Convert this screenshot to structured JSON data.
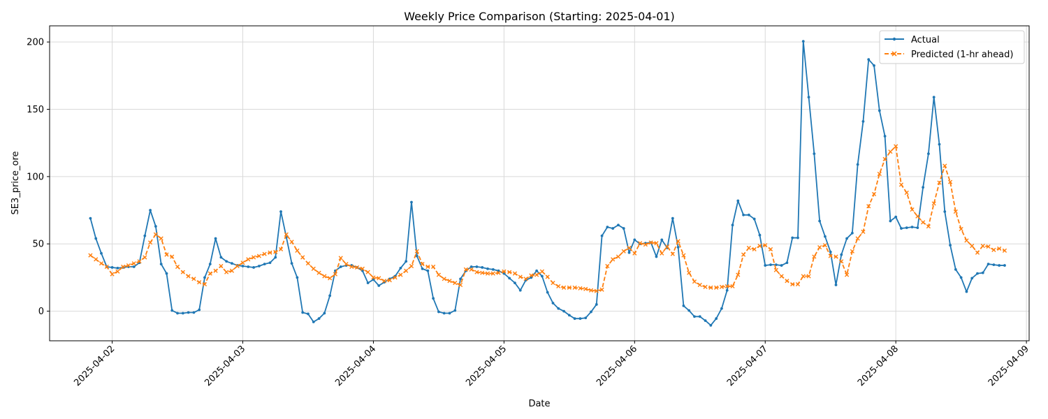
{
  "chart_data": {
    "type": "line",
    "title": "Weekly Price Comparison (Starting: 2025-04-01)",
    "xlabel": "Date",
    "ylabel": "SE3_price_ore",
    "xlim": [
      "2025-04-01T12:30",
      "2025-04-09T00:30"
    ],
    "ylim": [
      -22,
      212
    ],
    "x_ticks": [
      "2025-04-02",
      "2025-04-03",
      "2025-04-04",
      "2025-04-05",
      "2025-04-06",
      "2025-04-07",
      "2025-04-08",
      "2025-04-09"
    ],
    "y_ticks": [
      0,
      50,
      100,
      150,
      200
    ],
    "grid": true,
    "legend_position": "top-right",
    "x_start": "2025-04-01T20:00",
    "x_step_hours": 1,
    "series": [
      {
        "name": "Actual",
        "color": "#1f77b4",
        "marker": "dot",
        "line_style": "solid",
        "values": [
          69,
          54,
          43,
          33,
          32.5,
          32,
          32.5,
          33,
          33,
          36,
          56,
          75,
          63,
          35,
          28,
          0.5,
          -1.5,
          -1.5,
          -1,
          -1,
          1,
          25,
          35,
          54,
          40,
          37,
          35.5,
          34,
          33.5,
          33,
          32.5,
          33.5,
          35,
          36,
          40,
          74,
          55,
          35.5,
          25,
          -1,
          -2,
          -8,
          -5.5,
          -1.5,
          11.5,
          30,
          33,
          34,
          34,
          32.5,
          30,
          21,
          23.5,
          19,
          21.5,
          24,
          26,
          32,
          37,
          81,
          41,
          31.5,
          30,
          9.5,
          -0.5,
          -1.5,
          -1.5,
          0.5,
          24,
          30,
          33,
          33,
          32.5,
          31.5,
          31,
          30,
          28,
          24.5,
          21,
          15.5,
          23,
          25,
          30,
          26,
          14,
          6,
          2,
          0,
          -3,
          -5.5,
          -5.5,
          -5,
          -0.5,
          5,
          56,
          62.5,
          61.5,
          64,
          61.5,
          43.5,
          53,
          50,
          50.5,
          51,
          40.5,
          53,
          47,
          69,
          47.5,
          4,
          0.5,
          -4,
          -4,
          -7,
          -10.5,
          -5.5,
          2,
          15.5,
          64,
          82,
          71.5,
          71.5,
          68.5,
          56.5,
          34,
          34.5,
          34.5,
          34,
          36,
          54.5,
          54.5,
          200.5,
          159,
          117,
          67,
          55.5,
          44,
          19.5,
          42,
          54,
          58,
          109,
          141,
          187,
          182.5,
          149,
          130,
          67,
          70,
          61.5,
          62,
          62.5,
          62,
          92,
          117,
          159,
          124,
          74,
          49,
          31,
          25,
          14.5,
          24.5,
          28,
          28.5,
          35,
          34.5,
          34,
          34
        ]
      },
      {
        "name": "Predicted (1-hr ahead)",
        "color": "#ff7f0e",
        "marker": "x",
        "line_style": "dashed",
        "values": [
          41.5,
          38.5,
          35.5,
          33,
          27.5,
          29.5,
          33,
          34,
          35.5,
          37,
          40,
          51,
          57,
          54,
          42,
          40.5,
          33,
          29,
          26,
          24,
          21.5,
          20,
          28,
          30,
          33.5,
          29,
          30,
          33.5,
          36,
          38.5,
          40,
          41,
          42.5,
          43.5,
          44,
          46,
          57,
          51.5,
          45,
          40,
          35.5,
          31.5,
          28.5,
          26,
          24.5,
          27.5,
          39.5,
          35,
          33,
          32.5,
          31.5,
          29,
          25,
          24.5,
          22.5,
          23,
          25,
          27,
          30,
          33.5,
          44.5,
          35,
          33,
          33,
          27,
          24,
          22.5,
          21,
          19.5,
          31,
          31,
          29,
          28.5,
          28,
          28,
          28.5,
          29.5,
          29,
          28,
          25.5,
          24,
          26.5,
          27,
          29.5,
          25.5,
          21,
          18.5,
          17.5,
          17.5,
          17.5,
          17,
          16.5,
          15.5,
          15,
          16,
          33.5,
          38.5,
          40.5,
          44.5,
          47,
          43,
          50.5,
          49.5,
          51,
          50.5,
          43,
          48,
          42.5,
          52,
          41.5,
          28.5,
          22,
          19.5,
          18,
          17.5,
          17.5,
          18,
          18.5,
          18.5,
          27,
          42,
          47,
          46,
          48.5,
          49,
          46,
          30.5,
          26,
          22.5,
          20,
          20,
          26,
          26,
          40.5,
          47.5,
          49,
          41,
          40.5,
          37,
          27,
          44.5,
          54,
          59,
          78,
          87,
          102,
          113,
          118.5,
          122.5,
          94,
          88,
          75.5,
          70.5,
          66,
          63,
          80,
          95.5,
          108,
          96,
          74,
          61,
          52.5,
          48.5,
          43.5,
          48.5,
          48,
          45.5,
          46.5,
          45
        ]
      }
    ]
  }
}
